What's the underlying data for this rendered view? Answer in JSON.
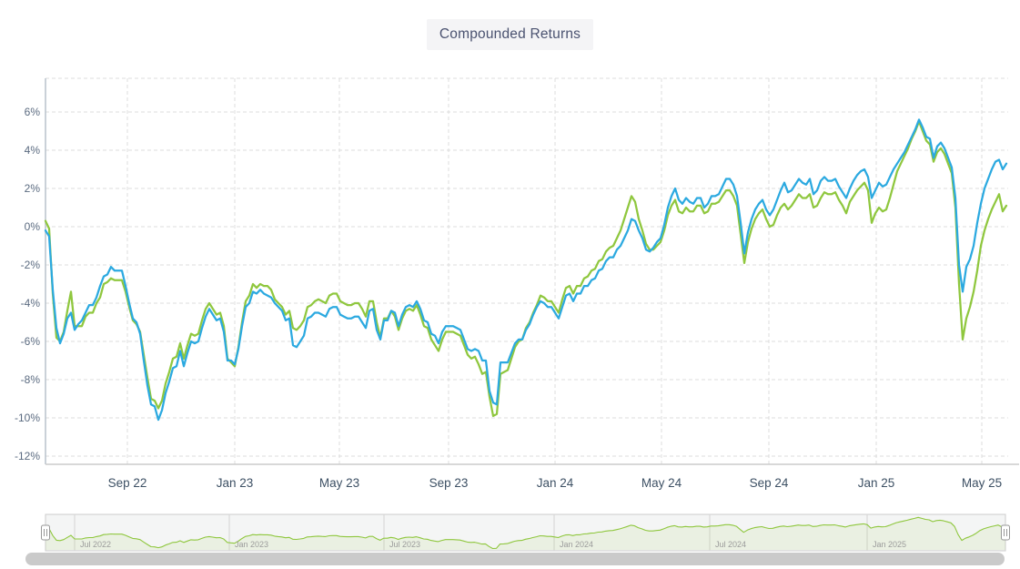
{
  "title": {
    "text": "Compounded Returns"
  },
  "colors": {
    "blue_series": "#2BA9E0",
    "green_series": "#8FC73E",
    "grid": "#dcdcdc",
    "axis_line": "#b9c2cc",
    "bottom_axis_line": "#cccccc",
    "title_text": "#4a5270",
    "title_bg": "#f4f4f6",
    "y_tick_text": "#5b6b80",
    "x_tick_text": "#3d5064",
    "nav_tick_text": "#9b9b9b",
    "nav_border": "#cccccc",
    "nav_bg": "#f4f5f5",
    "nav_area_fill": "rgba(143,199,62,0.10)",
    "scrollbar_thumb": "#cacaca",
    "handle_fill": "#ffffff",
    "handle_stroke": "#989898"
  },
  "chart_data": {
    "type": "line",
    "title": "Compounded Returns",
    "x_range": {
      "start": "Jun 2022",
      "end": "May 2025",
      "sampling": "uniform, approx weekly"
    },
    "x_axis": {
      "tick_labels": [
        "Sep 22",
        "Jan 23",
        "May 23",
        "Sep 23",
        "Jan 24",
        "May 24",
        "Sep 24",
        "Jan 25",
        "May 25"
      ]
    },
    "y_axis": {
      "tick_labels": [
        "6%",
        "4%",
        "2%",
        "0%",
        "-2%",
        "-4%",
        "-6%",
        "-8%",
        "-10%",
        "-12%"
      ],
      "tick_values": [
        6,
        4,
        2,
        0,
        -2,
        -4,
        -6,
        -8,
        -10,
        -12
      ],
      "unit": "%",
      "ylim": [
        -12.4,
        7.8
      ],
      "grid": "dashed"
    },
    "legend": "none",
    "series": [
      {
        "name": "green-series",
        "color": "#8FC73E",
        "values": [
          0.3,
          -0.1,
          -3.5,
          -5.8,
          -6.0,
          -5.5,
          -4.4,
          -3.4,
          -5.2,
          -5.2,
          -5.2,
          -4.7,
          -4.5,
          -4.5,
          -4.0,
          -3.7,
          -3.0,
          -2.9,
          -2.7,
          -2.8,
          -2.8,
          -2.8,
          -3.4,
          -4.2,
          -4.9,
          -5.1,
          -5.5,
          -6.7,
          -7.9,
          -9.0,
          -9.1,
          -9.5,
          -9.1,
          -8.2,
          -7.6,
          -6.9,
          -6.8,
          -6.1,
          -6.9,
          -6.2,
          -5.6,
          -5.7,
          -5.6,
          -4.9,
          -4.3,
          -4.0,
          -4.3,
          -4.6,
          -4.5,
          -5.2,
          -6.9,
          -7.1,
          -7.3,
          -6.3,
          -5.0,
          -3.9,
          -3.6,
          -3.0,
          -3.2,
          -3.0,
          -3.1,
          -3.1,
          -3.3,
          -3.8,
          -4.0,
          -4.2,
          -4.6,
          -4.4,
          -5.3,
          -5.4,
          -5.2,
          -4.9,
          -4.2,
          -4.1,
          -3.9,
          -3.8,
          -3.9,
          -4.0,
          -3.6,
          -3.5,
          -3.5,
          -3.9,
          -4.0,
          -4.1,
          -4.1,
          -4.0,
          -4.0,
          -4.3,
          -4.7,
          -3.9,
          -3.9,
          -5.0,
          -5.8,
          -4.8,
          -4.8,
          -4.4,
          -4.7,
          -5.4,
          -4.8,
          -4.4,
          -4.3,
          -4.4,
          -4.1,
          -4.6,
          -5.2,
          -5.3,
          -5.9,
          -6.2,
          -6.5,
          -5.9,
          -5.5,
          -5.5,
          -5.5,
          -5.6,
          -5.7,
          -6.2,
          -6.7,
          -6.9,
          -6.8,
          -7.2,
          -7.7,
          -7.6,
          -8.9,
          -9.9,
          -9.8,
          -7.7,
          -7.6,
          -7.5,
          -6.9,
          -6.3,
          -6.0,
          -5.9,
          -5.3,
          -5.0,
          -4.5,
          -4.1,
          -3.6,
          -3.7,
          -3.9,
          -3.9,
          -4.2,
          -4.5,
          -3.8,
          -3.2,
          -3.1,
          -3.5,
          -3.1,
          -3.1,
          -2.7,
          -2.6,
          -2.3,
          -2.2,
          -1.8,
          -1.7,
          -1.3,
          -1.1,
          -1.0,
          -0.6,
          -0.2,
          0.4,
          1.0,
          1.6,
          1.3,
          0.4,
          -0.2,
          -0.9,
          -1.2,
          -1.2,
          -1.0,
          -0.8,
          -0.2,
          0.6,
          1.1,
          1.4,
          0.8,
          0.7,
          1.0,
          0.8,
          0.8,
          1.1,
          1.1,
          0.7,
          0.8,
          1.2,
          1.2,
          1.3,
          1.6,
          1.9,
          1.9,
          1.6,
          1.1,
          -0.4,
          -1.9,
          -0.8,
          -0.1,
          0.4,
          0.7,
          0.9,
          0.4,
          0.0,
          0.1,
          0.6,
          1.0,
          1.2,
          0.9,
          1.1,
          1.4,
          1.7,
          1.5,
          1.5,
          1.7,
          1.0,
          1.1,
          1.5,
          1.8,
          1.7,
          1.7,
          1.8,
          1.4,
          1.1,
          0.7,
          1.3,
          1.6,
          1.9,
          2.1,
          2.3,
          1.9,
          0.2,
          0.7,
          1.0,
          0.8,
          0.9,
          1.5,
          2.2,
          2.9,
          3.3,
          3.7,
          4.1,
          4.6,
          5.0,
          5.5,
          5.0,
          4.5,
          4.3,
          3.4,
          3.9,
          4.1,
          3.8,
          3.3,
          2.8,
          1.0,
          -3.0,
          -5.9,
          -4.8,
          -4.2,
          -3.4,
          -2.3,
          -1.0,
          -0.2,
          0.4,
          0.9,
          1.3,
          1.7,
          0.8,
          1.1
        ]
      },
      {
        "name": "blue-series",
        "color": "#2BA9E0",
        "values": [
          -0.2,
          -0.5,
          -3.3,
          -5.3,
          -6.1,
          -5.6,
          -4.8,
          -4.5,
          -5.4,
          -5.1,
          -4.9,
          -4.5,
          -4.1,
          -4.1,
          -3.7,
          -3.1,
          -2.6,
          -2.5,
          -2.1,
          -2.3,
          -2.3,
          -2.3,
          -3.1,
          -4.0,
          -4.8,
          -5.0,
          -5.6,
          -7.0,
          -8.3,
          -9.3,
          -9.4,
          -10.1,
          -9.6,
          -8.7,
          -8.1,
          -7.4,
          -7.3,
          -6.5,
          -7.3,
          -6.6,
          -6.0,
          -6.1,
          -6.0,
          -5.3,
          -4.7,
          -4.3,
          -4.6,
          -4.9,
          -4.8,
          -5.5,
          -7.0,
          -7.0,
          -7.2,
          -6.4,
          -5.2,
          -4.2,
          -4.0,
          -3.4,
          -3.5,
          -3.3,
          -3.5,
          -3.6,
          -3.7,
          -4.0,
          -4.2,
          -4.4,
          -4.9,
          -4.8,
          -6.2,
          -6.3,
          -6.0,
          -5.7,
          -4.8,
          -4.7,
          -4.5,
          -4.5,
          -4.6,
          -4.7,
          -4.3,
          -4.2,
          -4.2,
          -4.6,
          -4.7,
          -4.8,
          -4.8,
          -4.7,
          -4.7,
          -5.0,
          -5.3,
          -4.4,
          -4.3,
          -5.4,
          -5.9,
          -4.9,
          -4.9,
          -4.4,
          -4.5,
          -5.2,
          -4.6,
          -4.2,
          -4.1,
          -4.2,
          -3.9,
          -4.3,
          -4.9,
          -5.0,
          -5.6,
          -5.7,
          -6.1,
          -5.5,
          -5.2,
          -5.2,
          -5.2,
          -5.3,
          -5.4,
          -5.9,
          -6.4,
          -6.5,
          -6.4,
          -6.5,
          -7.0,
          -7.0,
          -8.6,
          -9.2,
          -9.3,
          -7.1,
          -7.1,
          -7.1,
          -6.6,
          -6.1,
          -5.9,
          -5.9,
          -5.4,
          -5.1,
          -4.6,
          -4.2,
          -3.9,
          -4.0,
          -4.2,
          -4.2,
          -4.5,
          -4.8,
          -4.2,
          -3.6,
          -3.5,
          -3.9,
          -3.5,
          -3.5,
          -3.1,
          -3.1,
          -2.8,
          -2.7,
          -2.3,
          -2.2,
          -1.8,
          -1.6,
          -1.6,
          -1.2,
          -1.0,
          -0.6,
          -0.2,
          0.4,
          0.3,
          -0.2,
          -0.6,
          -1.2,
          -1.3,
          -1.1,
          -0.8,
          -0.6,
          0.1,
          1.0,
          1.6,
          2.0,
          1.4,
          1.2,
          1.5,
          1.3,
          1.2,
          1.5,
          1.5,
          1.0,
          1.2,
          1.6,
          1.6,
          1.7,
          2.1,
          2.5,
          2.5,
          2.2,
          1.6,
          0.2,
          -1.4,
          -0.3,
          0.4,
          0.9,
          1.2,
          1.4,
          0.9,
          0.6,
          0.9,
          1.4,
          1.9,
          2.3,
          1.8,
          1.9,
          2.2,
          2.5,
          2.3,
          2.2,
          2.5,
          1.7,
          1.9,
          2.4,
          2.6,
          2.4,
          2.4,
          2.5,
          2.1,
          1.8,
          1.5,
          2.0,
          2.4,
          2.7,
          2.9,
          3.0,
          2.6,
          1.5,
          1.9,
          2.3,
          2.1,
          2.2,
          2.6,
          3.0,
          3.3,
          3.6,
          3.9,
          4.3,
          4.7,
          5.1,
          5.6,
          5.2,
          4.7,
          4.6,
          3.6,
          4.2,
          4.4,
          4.1,
          3.6,
          3.1,
          1.5,
          -2.0,
          -3.4,
          -2.1,
          -1.7,
          -1.0,
          0.2,
          1.2,
          2.0,
          2.5,
          3.0,
          3.4,
          3.5,
          3.0,
          3.3
        ]
      }
    ],
    "navigator": {
      "tick_labels": [
        "Jul 2022",
        "Jan 2023",
        "Jul 2023",
        "Jan 2024",
        "Jul 2024",
        "Jan 2025"
      ],
      "series_shown": "green-series",
      "range_selected": "full"
    }
  }
}
